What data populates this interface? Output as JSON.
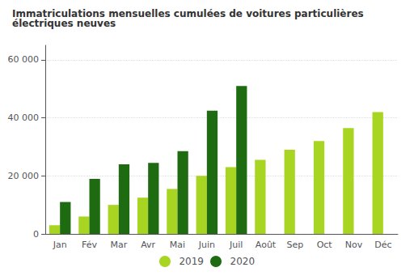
{
  "chart_data": {
    "type": "bar",
    "title": "Immatriculations mensuelles cumulées de voitures particulières électriques neuves",
    "categories": [
      "Jan",
      "Fév",
      "Mar",
      "Avr",
      "Mai",
      "Juin",
      "Juil",
      "Août",
      "Sep",
      "Oct",
      "Nov",
      "Déc"
    ],
    "series": [
      {
        "name": "2019",
        "color": "#a8d422",
        "values": [
          3000,
          6000,
          10000,
          12500,
          15500,
          20000,
          23000,
          25500,
          29000,
          32000,
          36500,
          42000
        ]
      },
      {
        "name": "2020",
        "color": "#1e6b12",
        "values": [
          11000,
          19000,
          24000,
          24500,
          28500,
          42500,
          51000,
          null,
          null,
          null,
          null,
          null
        ]
      }
    ],
    "ylim": [
      0,
      65000
    ],
    "yticks": [
      0,
      {
        "value": 20000,
        "label": "20 000"
      },
      {
        "value": 40000,
        "label": "40 000"
      },
      {
        "value": 60000,
        "label": "60 000"
      }
    ],
    "grid": true,
    "legend": "bottom"
  }
}
